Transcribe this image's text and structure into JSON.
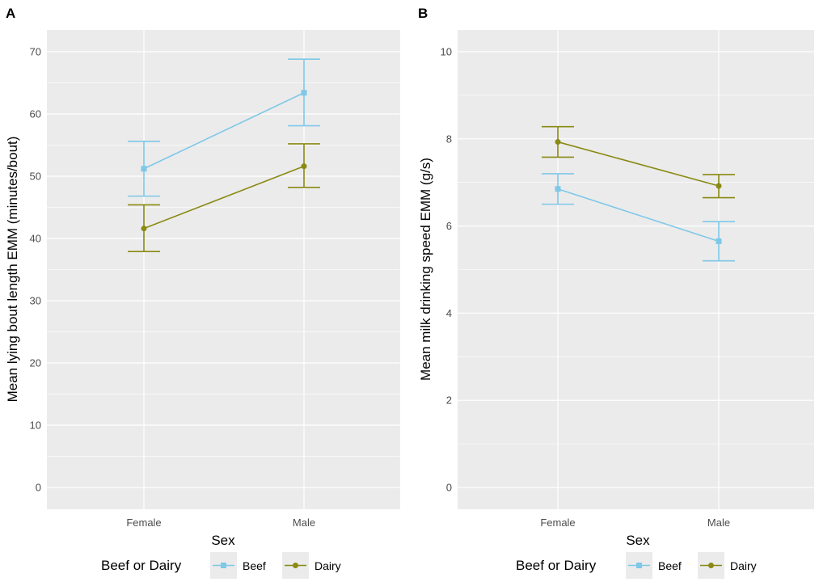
{
  "colors": {
    "beef": "#7EC8E8",
    "dairy": "#8A8A14",
    "panel_bg": "#EBEBEB",
    "grid": "#FFFFFF",
    "tick_text": "#4D4D4D",
    "title_text": "#000000"
  },
  "chart_data": [
    {
      "panel_label": "A",
      "type": "line",
      "categories": [
        "Female",
        "Male"
      ],
      "xlabel": "Sex",
      "ylabel": "Mean lying bout length EMM (minutes/bout)",
      "ylim": [
        -3.5,
        73.5
      ],
      "yticks": [
        0,
        10,
        20,
        30,
        40,
        50,
        60,
        70
      ],
      "grid": true,
      "series": [
        {
          "name": "Beef",
          "marker": "square",
          "values": [
            51.2,
            63.4
          ],
          "lower": [
            46.8,
            58.1
          ],
          "upper": [
            55.6,
            68.8
          ]
        },
        {
          "name": "Dairy",
          "marker": "circle",
          "values": [
            41.6,
            51.6
          ],
          "lower": [
            37.9,
            48.2
          ],
          "upper": [
            45.4,
            55.2
          ]
        }
      ],
      "legend": {
        "title": "Beef or Dairy",
        "position": "bottom",
        "labels": [
          "Beef",
          "Dairy"
        ]
      }
    },
    {
      "panel_label": "B",
      "type": "line",
      "categories": [
        "Female",
        "Male"
      ],
      "xlabel": "Sex",
      "ylabel": "Mean milk drinking speed EMM (g/s)",
      "ylim": [
        -0.5,
        10.5
      ],
      "yticks": [
        0,
        2,
        4,
        6,
        8,
        10
      ],
      "grid": true,
      "series": [
        {
          "name": "Beef",
          "marker": "square",
          "values": [
            6.85,
            5.65
          ],
          "lower": [
            6.5,
            5.2
          ],
          "upper": [
            7.2,
            6.1
          ]
        },
        {
          "name": "Dairy",
          "marker": "circle",
          "values": [
            7.93,
            6.92
          ],
          "lower": [
            7.58,
            6.65
          ],
          "upper": [
            8.28,
            7.18
          ]
        }
      ],
      "legend": {
        "title": "Beef or Dairy",
        "position": "bottom",
        "labels": [
          "Beef",
          "Dairy"
        ]
      }
    }
  ]
}
